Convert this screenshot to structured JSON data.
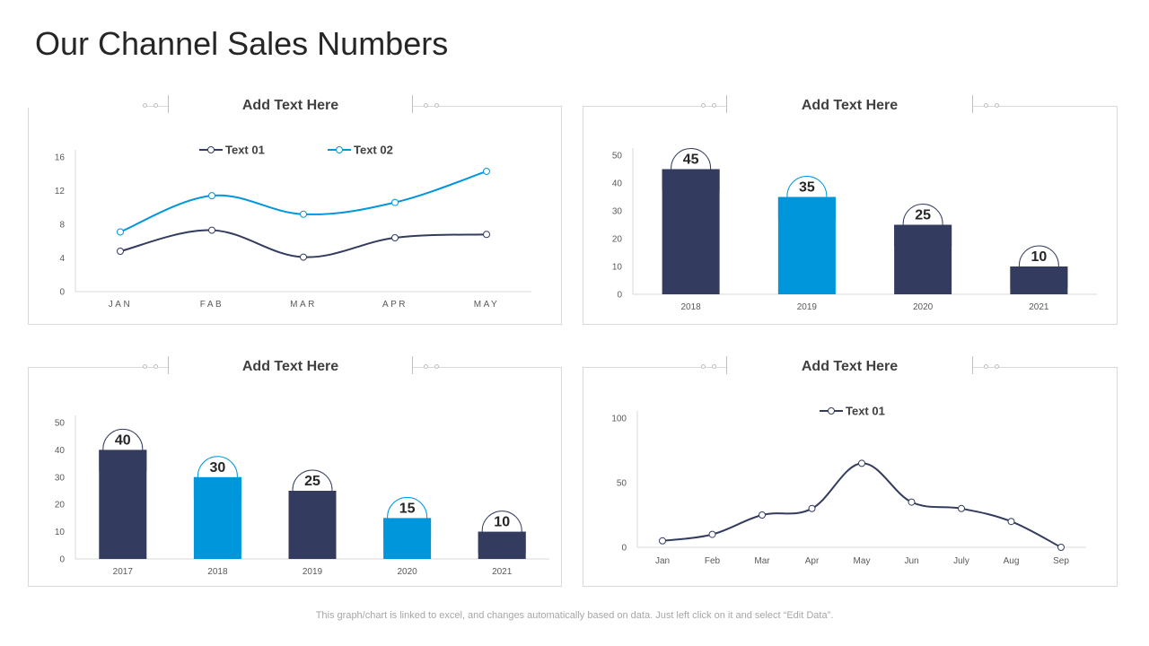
{
  "page": {
    "title": "Our Channel Sales Numbers"
  },
  "panels": [
    {
      "header": "Add Text Here"
    },
    {
      "header": "Add Text Here"
    },
    {
      "header": "Add Text Here"
    },
    {
      "header": "Add Text Here"
    }
  ],
  "footer": {
    "note": "This graph/chart is linked to excel,  and changes automatically based on data. Just left click on it and select “Edit Data”."
  },
  "colors": {
    "navy": "#333c5e",
    "blue": "#0096dc",
    "gray_text": "#595959"
  },
  "chart_data": [
    {
      "type": "line",
      "categories": [
        "JAN",
        "FAB",
        "MAR",
        "APR",
        "MAY"
      ],
      "series": [
        {
          "name": "Text 01",
          "values": [
            4.8,
            7.3,
            4.1,
            6.4,
            6.8
          ],
          "color": "#333c5e"
        },
        {
          "name": "Text 02",
          "values": [
            7.1,
            11.4,
            9.2,
            10.6,
            14.3
          ],
          "color": "#0096dc"
        }
      ],
      "ylim": [
        0,
        16
      ],
      "yticks": [
        0,
        4,
        8,
        12,
        16
      ],
      "legend": "top",
      "smooth": true
    },
    {
      "type": "bar",
      "categories": [
        "2018",
        "2019",
        "2020",
        "2021"
      ],
      "values": [
        45,
        35,
        25,
        10
      ],
      "bar_colors": [
        "#333c5e",
        "#0096dc",
        "#333c5e",
        "#333c5e"
      ],
      "ylim": [
        0,
        50
      ],
      "yticks": [
        0,
        10,
        20,
        30,
        40,
        50
      ],
      "labels": [
        "45",
        "35",
        "25",
        "10"
      ]
    },
    {
      "type": "bar",
      "categories": [
        "2017",
        "2018",
        "2019",
        "2020",
        "2021"
      ],
      "values": [
        40,
        30,
        25,
        15,
        10
      ],
      "bar_colors": [
        "#333c5e",
        "#0096dc",
        "#333c5e",
        "#0096dc",
        "#333c5e"
      ],
      "ylim": [
        0,
        50
      ],
      "yticks": [
        0,
        10,
        20,
        30,
        40,
        50
      ],
      "labels": [
        "40",
        "30",
        "25",
        "15",
        "10"
      ]
    },
    {
      "type": "line",
      "categories": [
        "Jan",
        "Feb",
        "Mar",
        "Apr",
        "May",
        "Jun",
        "July",
        "Aug",
        "Sep"
      ],
      "series": [
        {
          "name": "Text 01",
          "values": [
            5,
            10,
            25,
            30,
            65,
            35,
            30,
            20,
            0
          ],
          "color": "#333c5e"
        }
      ],
      "ylim": [
        0,
        100
      ],
      "yticks": [
        0,
        50,
        100
      ],
      "legend": "top",
      "smooth": true
    }
  ]
}
